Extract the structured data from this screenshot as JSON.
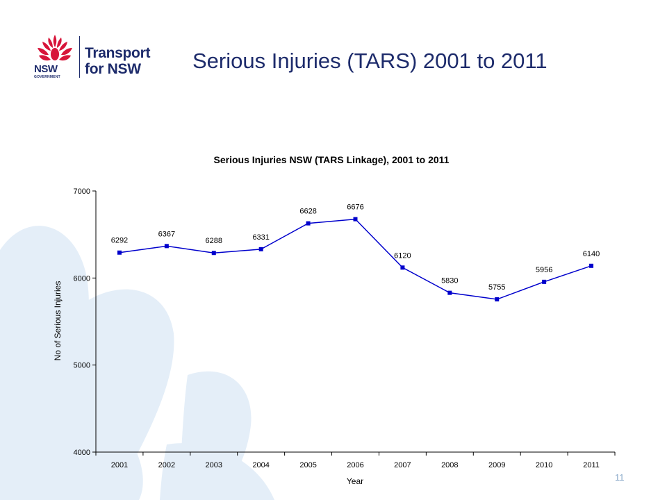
{
  "header": {
    "logo_nsw": "NSW",
    "logo_gov": "GOVERNMENT",
    "logo_brand_line1": "Transport",
    "logo_brand_line2": "for NSW",
    "title": "Serious Injuries (TARS) 2001 to 2011"
  },
  "footer": {
    "page_number": "11"
  },
  "colors": {
    "brand_navy": "#1d2b6b",
    "waratah_red": "#d7153a",
    "series_line": "#0000cc",
    "background_deco": "#e4eef8"
  },
  "chart_data": {
    "type": "line",
    "title": "Serious Injuries NSW (TARS Linkage), 2001 to 2011",
    "xlabel": "Year",
    "ylabel": "No of Serious Injuries",
    "categories": [
      "2001",
      "2002",
      "2003",
      "2004",
      "2005",
      "2006",
      "2007",
      "2008",
      "2009",
      "2010",
      "2011"
    ],
    "series": [
      {
        "values": [
          6292,
          6367,
          6288,
          6331,
          6628,
          6676,
          6120,
          5830,
          5755,
          5956,
          6140
        ]
      }
    ],
    "ylim": [
      4000,
      7000
    ],
    "yticks": [
      4000,
      5000,
      6000,
      7000
    ],
    "grid": false,
    "legend": "none",
    "data_labels": true
  }
}
